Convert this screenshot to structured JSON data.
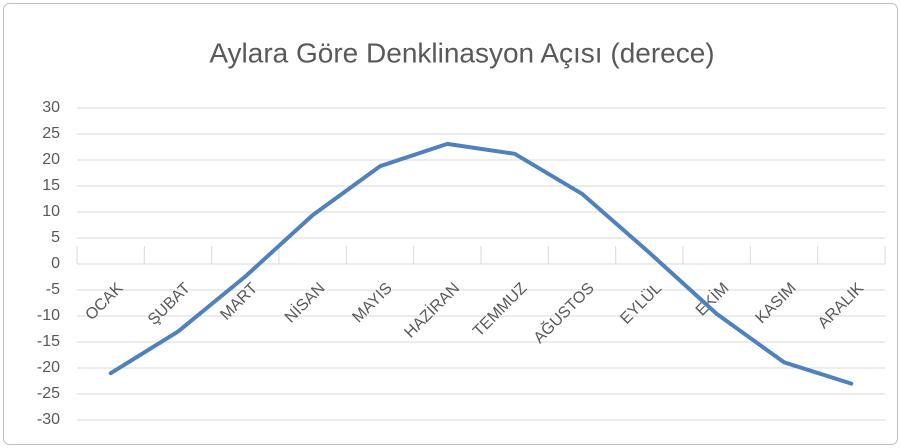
{
  "chart_data": {
    "type": "line",
    "title": "Aylara Göre Denklinasyon  Açısı (derece)",
    "categories": [
      "OCAK",
      "ŞUBAT",
      "MART",
      "NİSAN",
      "MAYIS",
      "HAZİRAN",
      "TEMMUZ",
      "AĞUSTOS",
      "EYLÜL",
      "EKİM",
      "KASIM",
      "ARALIK"
    ],
    "series": [
      {
        "name": "Denklinasyon",
        "color": "#4f81bd",
        "values": [
          -21,
          -13,
          -2.4,
          9.4,
          18.8,
          23.1,
          21.2,
          13.5,
          2.2,
          -9.6,
          -18.9,
          -23
        ]
      }
    ],
    "ylim": [
      -30,
      30
    ],
    "yticks": [
      -30,
      -25,
      -20,
      -15,
      -10,
      -5,
      0,
      5,
      10,
      15,
      20,
      25,
      30
    ],
    "grid": true
  }
}
